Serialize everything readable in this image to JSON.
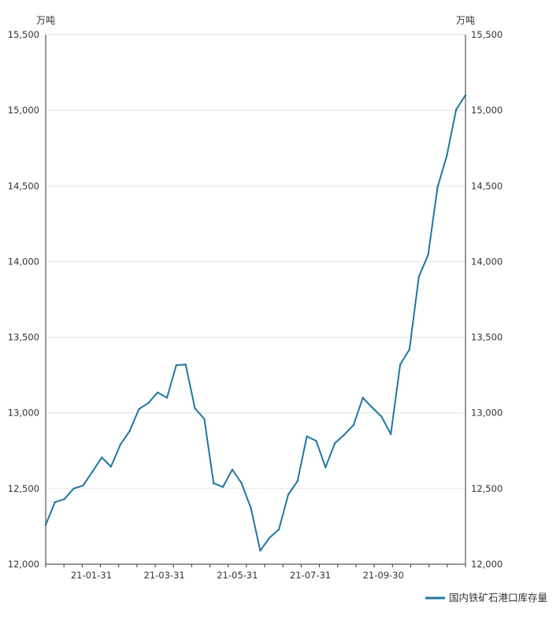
{
  "chart_data": {
    "type": "line",
    "y_unit_left": "万吨",
    "y_unit_right": "万吨",
    "ylim": [
      12000,
      15500
    ],
    "yticks": [
      12000,
      12500,
      13000,
      13500,
      14000,
      14500,
      15000,
      15500
    ],
    "ytick_labels": [
      "12,000",
      "12,500",
      "13,000",
      "13,500",
      "14,000",
      "14,500",
      "15,000",
      "15,500"
    ],
    "xtick_labels": [
      "21-01-31",
      "21-03-31",
      "21-05-31",
      "21-07-31",
      "21-09-30"
    ],
    "legend_position": "bottom-right",
    "grid": true,
    "series": [
      {
        "name": "国内铁矿石港口库存量",
        "color": "#1f77a0",
        "values": [
          12260,
          12410,
          12430,
          12500,
          12520,
          12610,
          12705,
          12645,
          12790,
          12880,
          13025,
          13065,
          13135,
          13100,
          13315,
          13320,
          13030,
          12960,
          12535,
          12510,
          12625,
          12535,
          12370,
          12090,
          12175,
          12230,
          12460,
          12550,
          12845,
          12815,
          12640,
          12800,
          12855,
          12920,
          13100,
          13035,
          12975,
          12860,
          13320,
          13420,
          13900,
          14045,
          14490,
          14700,
          15005,
          15100
        ]
      }
    ]
  }
}
